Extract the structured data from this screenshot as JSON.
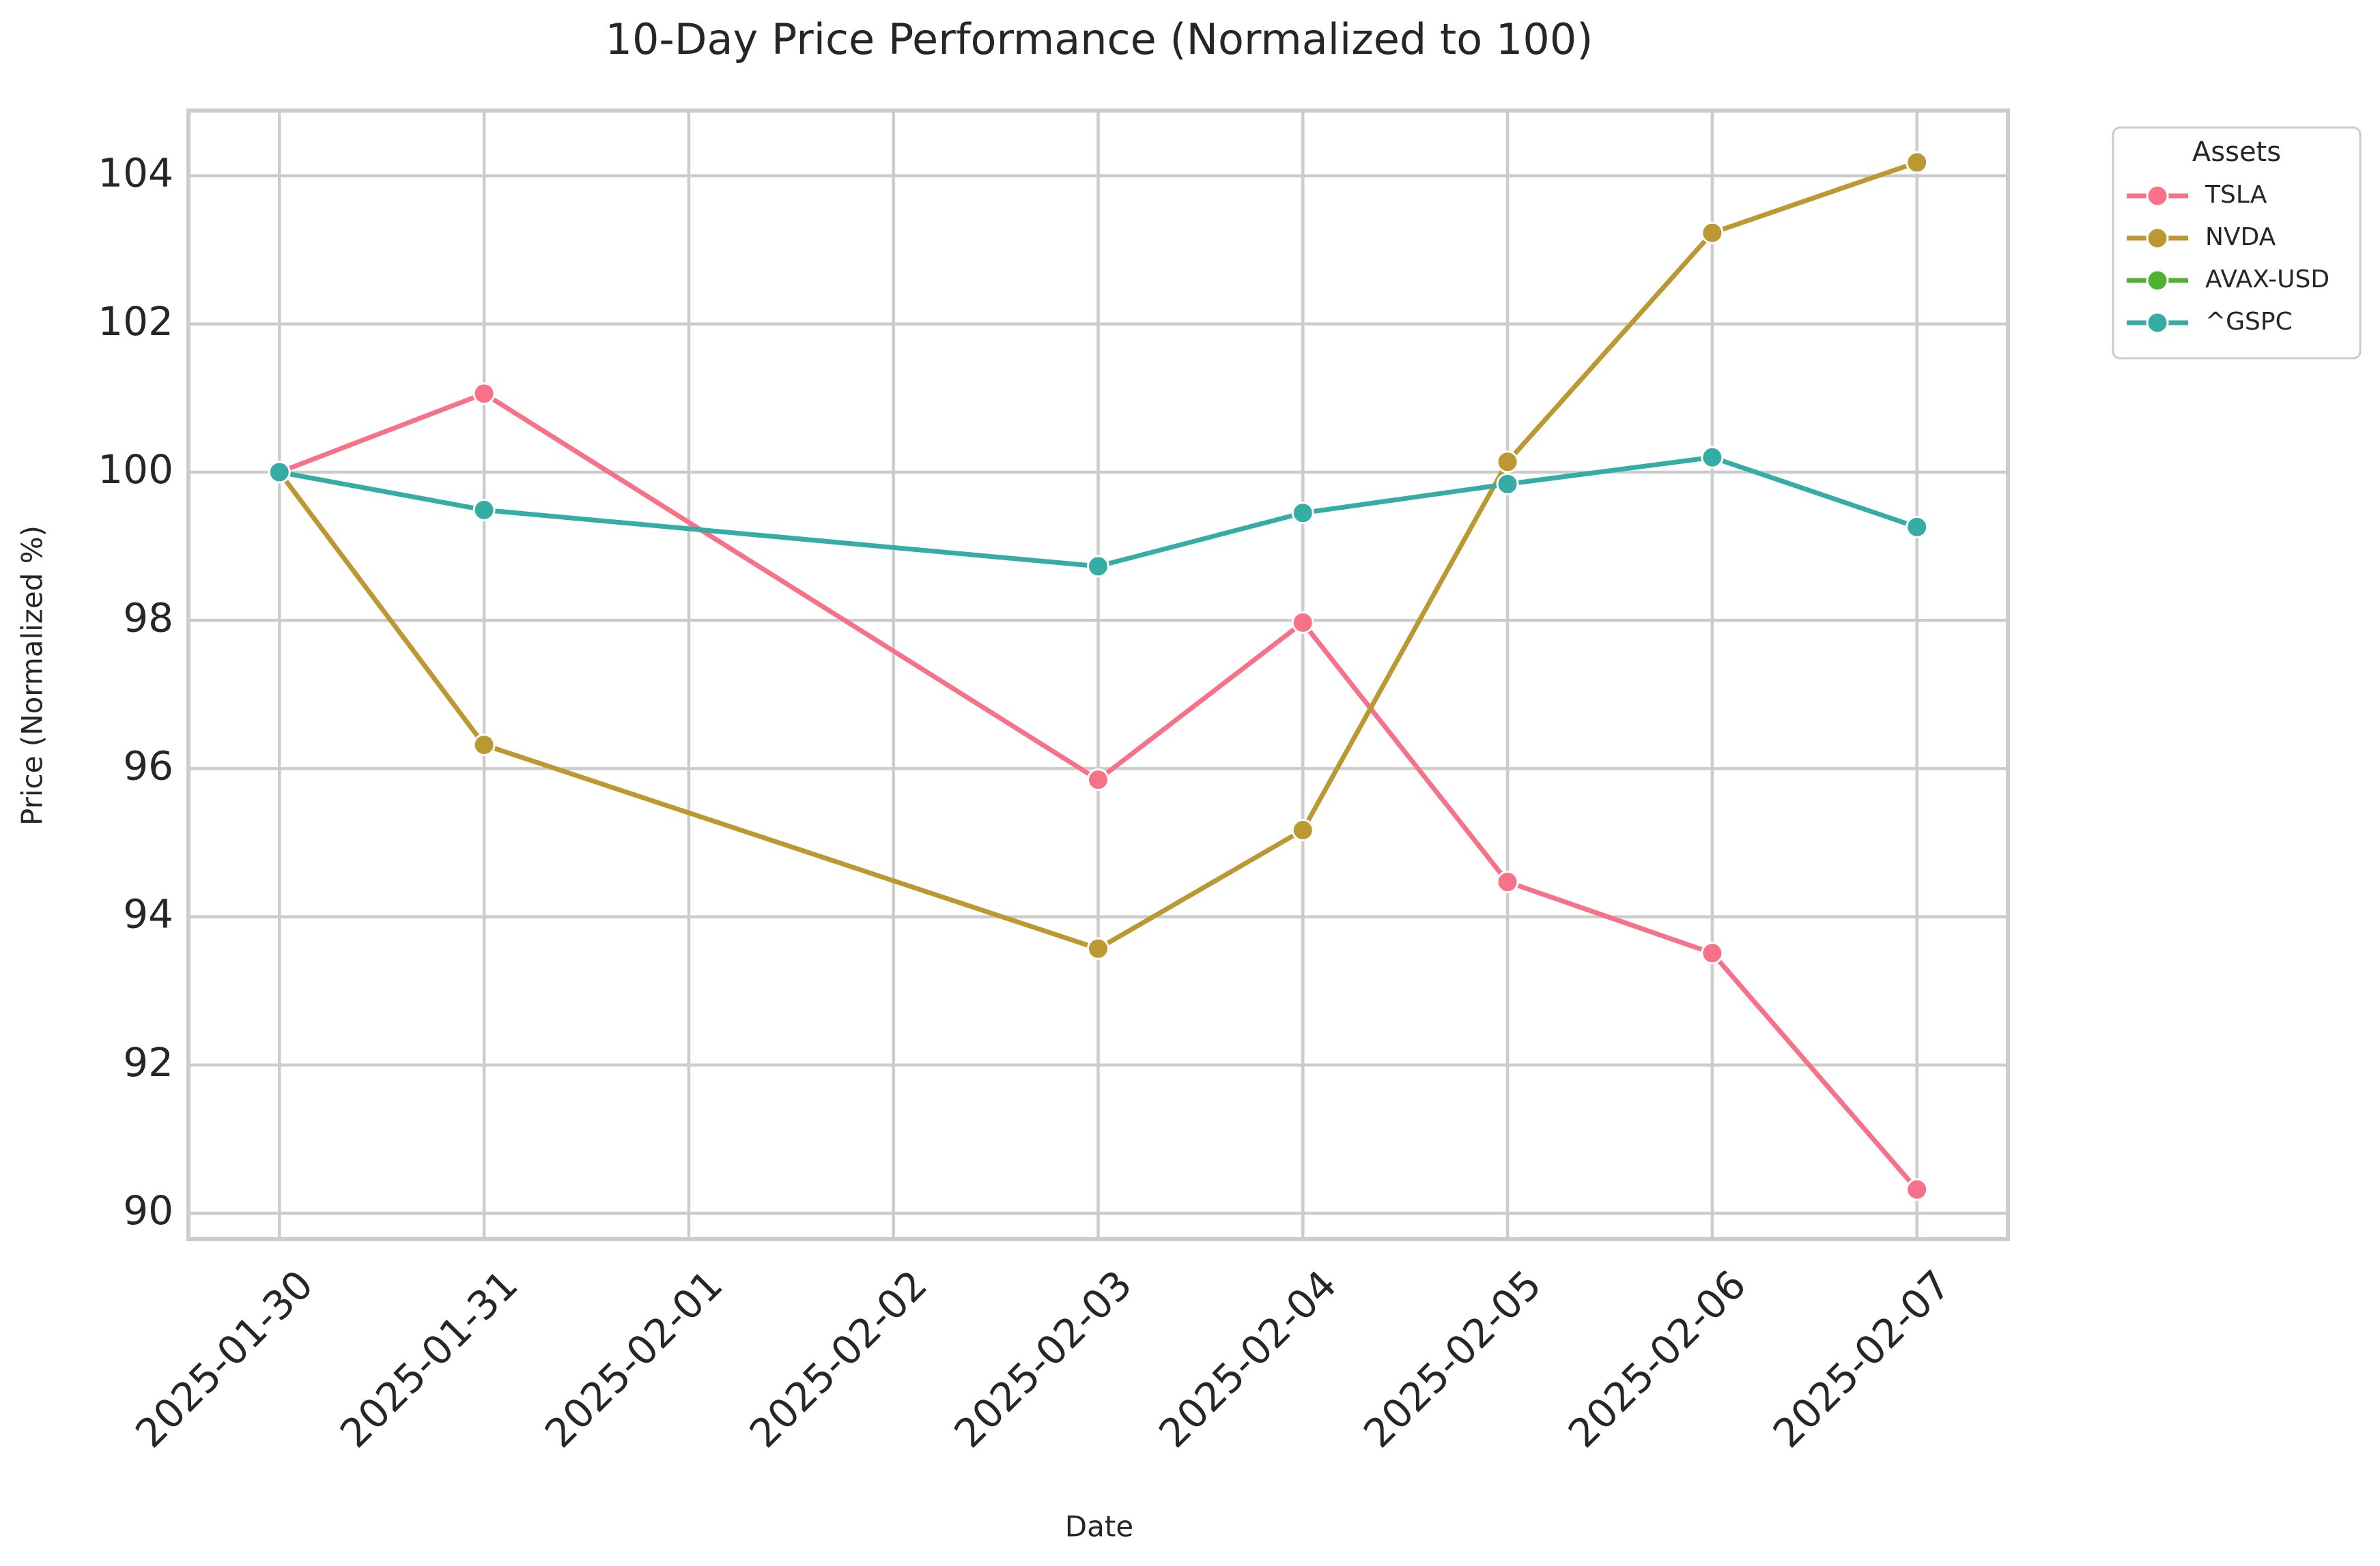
{
  "chart_data": {
    "type": "line",
    "title": "10-Day Price Performance (Normalized to 100)",
    "x_label": "Date",
    "y_label": "Price (Normalized %)",
    "x": [
      "2025-01-30",
      "2025-01-31",
      "2025-02-03",
      "2025-02-04",
      "2025-02-05",
      "2025-02-06",
      "2025-02-07"
    ],
    "series": [
      {
        "name": "TSLA",
        "color": "#f77189",
        "values": [
          100,
          101.06,
          95.85,
          97.97,
          94.47,
          93.51,
          90.32
        ]
      },
      {
        "name": "NVDA",
        "color": "#bb9832",
        "values": [
          100,
          96.32,
          93.57,
          95.17,
          100.14,
          103.23,
          104.18
        ]
      },
      {
        "name": "AVAX-USD",
        "color": "#50b131",
        "values": [
          null,
          null,
          null,
          null,
          null,
          null,
          null
        ]
      },
      {
        "name": "^GSPC",
        "color": "#36ada4",
        "values": [
          100,
          99.49,
          98.73,
          99.45,
          99.84,
          100.2,
          99.26
        ]
      }
    ],
    "xlim": [
      "2025-01-30",
      "2025-02-07"
    ],
    "xticks": [
      "2025-01-30",
      "2025-01-31",
      "2025-02-01",
      "2025-02-02",
      "2025-02-03",
      "2025-02-04",
      "2025-02-05",
      "2025-02-06",
      "2025-02-07"
    ],
    "ylim": [
      89.65,
      104.88
    ],
    "yticks": [
      90,
      92,
      94,
      96,
      98,
      100,
      102,
      104
    ],
    "grid": true,
    "legend_title": "Assets",
    "legend_position": "outside-upper-right"
  }
}
